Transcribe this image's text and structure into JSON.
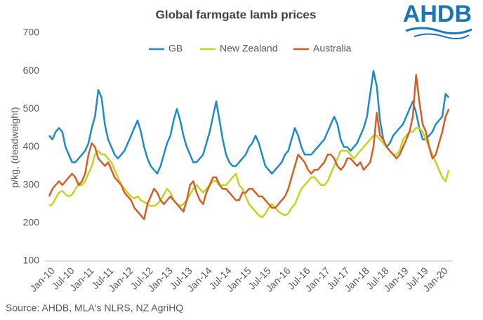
{
  "chart_data": {
    "type": "line",
    "title": "Global farmgate lamb prices",
    "logo": "AHDB",
    "ylabel": "p/kg, (deadweight)",
    "source": "Source: AHDB, MLA's NLRS, NZ AgriHQ",
    "ylim": [
      100,
      700
    ],
    "yticks": [
      100,
      200,
      300,
      400,
      500,
      600,
      700
    ],
    "grid": false,
    "legend": "top",
    "categories": [
      "Jan-10",
      null,
      null,
      null,
      null,
      null,
      "Jul-10",
      null,
      null,
      null,
      null,
      null,
      "Jan-11",
      null,
      null,
      null,
      null,
      null,
      "Jul-11",
      null,
      null,
      null,
      null,
      null,
      "Jan-12",
      null,
      null,
      null,
      null,
      null,
      "Jul-12",
      null,
      null,
      null,
      null,
      null,
      "Jan-13",
      null,
      null,
      null,
      null,
      null,
      "Jul-13",
      null,
      null,
      null,
      null,
      null,
      "Jan-14",
      null,
      null,
      null,
      null,
      null,
      "Jul-14",
      null,
      null,
      null,
      null,
      null,
      "Jan-15",
      null,
      null,
      null,
      null,
      null,
      "Jul-15",
      null,
      null,
      null,
      null,
      null,
      "Jan-16",
      null,
      null,
      null,
      null,
      null,
      "Jul-16",
      null,
      null,
      null,
      null,
      null,
      "Jan-17",
      null,
      null,
      null,
      null,
      null,
      "Jul-17",
      null,
      null,
      null,
      null,
      null,
      "Jan-18",
      null,
      null,
      null,
      null,
      null,
      "Jul-18",
      null,
      null,
      null,
      null,
      null,
      "Jan-19",
      null,
      null,
      null,
      null,
      null,
      "Jul-19",
      null,
      null,
      null,
      null,
      null,
      "Jan-20",
      null,
      null
    ],
    "series": [
      {
        "name": "GB",
        "color": "#1f8ac9",
        "values": [
          430,
          420,
          440,
          450,
          440,
          400,
          380,
          360,
          360,
          370,
          380,
          390,
          410,
          450,
          480,
          550,
          530,
          460,
          420,
          400,
          380,
          370,
          380,
          390,
          410,
          430,
          450,
          470,
          440,
          400,
          370,
          350,
          340,
          330,
          350,
          380,
          410,
          430,
          470,
          500,
          470,
          430,
          400,
          380,
          360,
          360,
          370,
          380,
          410,
          440,
          480,
          520,
          470,
          420,
          380,
          360,
          350,
          350,
          360,
          370,
          380,
          400,
          410,
          430,
          410,
          380,
          350,
          340,
          330,
          340,
          350,
          360,
          380,
          390,
          420,
          450,
          430,
          400,
          380,
          380,
          380,
          390,
          400,
          410,
          420,
          440,
          460,
          480,
          460,
          420,
          400,
          400,
          390,
          400,
          410,
          430,
          450,
          480,
          540,
          600,
          560,
          470,
          420,
          400,
          410,
          430,
          440,
          450,
          460,
          480,
          500,
          520,
          490,
          450,
          420,
          420,
          430,
          440,
          460,
          470,
          480,
          540,
          530
        ]
      },
      {
        "name": "New Zealand",
        "color": "#c3d41e",
        "values": [
          245,
          250,
          265,
          280,
          285,
          275,
          270,
          275,
          290,
          300,
          300,
          310,
          330,
          350,
          380,
          390,
          380,
          380,
          370,
          360,
          340,
          320,
          300,
          290,
          280,
          270,
          265,
          270,
          260,
          255,
          250,
          245,
          245,
          250,
          260,
          275,
          290,
          280,
          260,
          250,
          245,
          250,
          260,
          275,
          290,
          300,
          290,
          280,
          290,
          300,
          310,
          310,
          300,
          300,
          300,
          310,
          320,
          330,
          300,
          290,
          270,
          250,
          240,
          230,
          220,
          215,
          225,
          240,
          250,
          240,
          230,
          225,
          220,
          225,
          240,
          250,
          270,
          290,
          300,
          310,
          320,
          320,
          310,
          300,
          300,
          310,
          330,
          350,
          370,
          390,
          390,
          390,
          380,
          370,
          380,
          390,
          400,
          410,
          420,
          430,
          430,
          420,
          410,
          400,
          390,
          380,
          380,
          390,
          420,
          430,
          440,
          440,
          450,
          450,
          440,
          420,
          400,
          380,
          360,
          340,
          320,
          310,
          340
        ]
      },
      {
        "name": "Australia",
        "color": "#d35f27",
        "values": [
          270,
          290,
          300,
          310,
          300,
          310,
          320,
          330,
          320,
          300,
          310,
          330,
          380,
          410,
          400,
          370,
          360,
          350,
          360,
          340,
          320,
          310,
          300,
          280,
          270,
          260,
          240,
          230,
          220,
          210,
          250,
          270,
          290,
          280,
          260,
          250,
          260,
          270,
          260,
          250,
          240,
          230,
          260,
          300,
          310,
          280,
          260,
          250,
          280,
          300,
          320,
          320,
          300,
          290,
          290,
          280,
          270,
          260,
          260,
          280,
          280,
          290,
          290,
          280,
          270,
          270,
          260,
          250,
          240,
          240,
          250,
          260,
          270,
          290,
          320,
          350,
          380,
          370,
          360,
          340,
          330,
          340,
          340,
          350,
          360,
          380,
          380,
          370,
          350,
          340,
          350,
          370,
          370,
          360,
          350,
          360,
          340,
          350,
          360,
          400,
          490,
          430,
          420,
          400,
          390,
          380,
          370,
          380,
          400,
          420,
          440,
          480,
          590,
          520,
          460,
          440,
          400,
          370,
          380,
          410,
          440,
          480,
          500
        ]
      }
    ]
  }
}
